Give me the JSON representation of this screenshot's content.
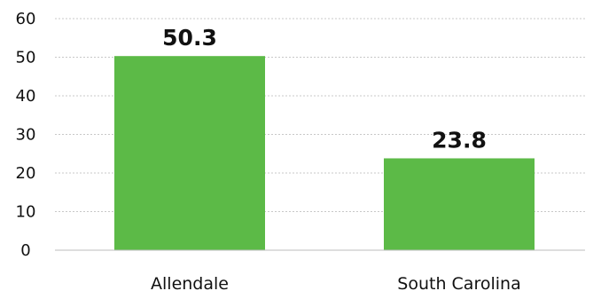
{
  "chart_data": {
    "type": "bar",
    "categories": [
      "Allendale",
      "South Carolina"
    ],
    "values": [
      50.3,
      23.8
    ],
    "data_labels": [
      "50.3",
      "23.8"
    ],
    "title": "",
    "xlabel": "",
    "ylabel": "",
    "ylim": [
      0,
      60
    ],
    "yticks": [
      0,
      10,
      20,
      30,
      40,
      50,
      60
    ],
    "ytick_labels": [
      "0",
      "10",
      "20",
      "30",
      "40",
      "50",
      "60"
    ],
    "bar_color": "#5cba47",
    "grid": true,
    "legend": "none"
  }
}
